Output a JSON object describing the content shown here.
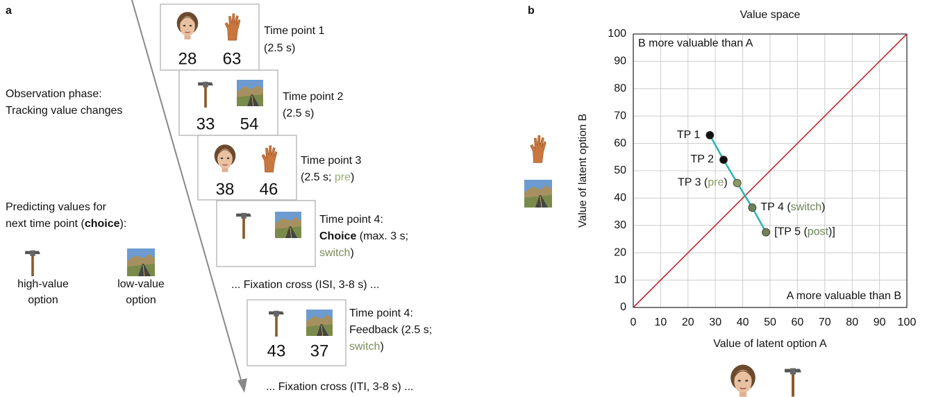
{
  "panel_a": {
    "label": "a",
    "observation": [
      "Observation phase:",
      "Tracking value changes"
    ],
    "prediction": {
      "line1": "Predicting values for",
      "line2": [
        "next time point (",
        "choice",
        "):"
      ]
    },
    "options": {
      "high": [
        "high-value",
        "option"
      ],
      "low": [
        "low-value",
        "option"
      ]
    },
    "screens": [
      {
        "values": [
          28,
          63
        ],
        "caption": [
          [
            "Time point 1"
          ],
          [
            "(2.5 s)"
          ]
        ]
      },
      {
        "values": [
          33,
          54
        ],
        "caption": [
          [
            "Time point 2"
          ],
          [
            "(2.5 s)"
          ]
        ]
      },
      {
        "values": [
          38,
          46
        ],
        "caption": [
          [
            "Time point 3"
          ],
          [
            "(2.5 s; ",
            "pre",
            ")"
          ]
        ]
      },
      {
        "caption": [
          [
            "Time point 4:"
          ],
          [
            "Choice",
            " (max. 3 s;"
          ],
          [
            "switch",
            ")"
          ]
        ]
      },
      {
        "values": [
          43,
          37
        ],
        "caption": [
          [
            "Time point 4:"
          ],
          [
            "Feedback (2.5 s;"
          ],
          [
            "switch",
            ")"
          ]
        ]
      }
    ],
    "fixations": [
      "... Fixation cross (ISI, 3-8 s) ...",
      "... Fixation cross (ITI, 3-8 s) ..."
    ]
  },
  "chart_data": {
    "type": "line",
    "panel_label": "b",
    "title": "Value space",
    "x_label": "Value of latent option A",
    "y_label": "Value of latent option B",
    "xlim": [
      0,
      100
    ],
    "ylim": [
      0,
      100
    ],
    "xticks": [
      0,
      10,
      20,
      30,
      40,
      50,
      60,
      70,
      80,
      90,
      100
    ],
    "yticks": [
      0,
      10,
      20,
      30,
      40,
      50,
      60,
      70,
      80,
      90,
      100
    ],
    "grid": true,
    "reference_line": {
      "x": [
        0,
        100
      ],
      "y": [
        0,
        100
      ],
      "color": "#c0272d"
    },
    "annotations": [
      "B more valuable than A",
      "A more valuable than B"
    ],
    "series": [
      {
        "color": "#2bb5ae",
        "x": [
          28,
          33,
          38,
          43.5,
          48.5
        ],
        "values": [
          63,
          54,
          45.5,
          36.5,
          27.5
        ],
        "point_colors": [
          "#111111",
          "#111111",
          "#8a9a62",
          "#6f8156",
          "#6f8156"
        ],
        "labels": [
          [
            "TP 1"
          ],
          [
            "TP 2"
          ],
          [
            "TP 3 (",
            "pre",
            ")"
          ],
          [
            "TP 4 (",
            "switch",
            ")"
          ],
          [
            "[TP 5 (",
            "post",
            ")]"
          ]
        ]
      }
    ]
  }
}
